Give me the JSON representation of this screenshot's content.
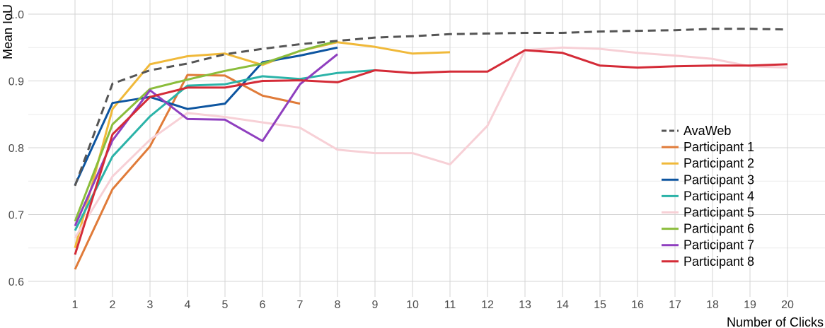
{
  "chart_data": {
    "type": "line",
    "xlabel": "Number of Clicks",
    "ylabel": "Mean IoU",
    "xlim": [
      0.5,
      20.8
    ],
    "ylim": [
      0.58,
      1.015
    ],
    "x_ticks": [
      "1",
      "2",
      "3",
      "4",
      "5",
      "6",
      "7",
      "8",
      "9",
      "10",
      "11",
      "12",
      "13",
      "14",
      "15",
      "16",
      "17",
      "18",
      "19",
      "20"
    ],
    "y_ticks": [
      "0.6",
      "0.7",
      "0.8",
      "0.9",
      "1.0"
    ],
    "grid": true,
    "legend_position": "right",
    "series": [
      {
        "name": "AvaWeb",
        "color": "#555555",
        "dash": true,
        "x": [
          1,
          2,
          3,
          4,
          5,
          6,
          7,
          8,
          9,
          10,
          11,
          12,
          13,
          14,
          15,
          16,
          17,
          18,
          19,
          20
        ],
        "y": [
          0.743,
          0.896,
          0.916,
          0.926,
          0.94,
          0.948,
          0.955,
          0.96,
          0.965,
          0.967,
          0.97,
          0.971,
          0.972,
          0.972,
          0.974,
          0.975,
          0.976,
          0.978,
          0.978,
          0.977
        ]
      },
      {
        "name": "Participant 1",
        "color": "#e07b39",
        "dash": false,
        "x": [
          1,
          2,
          3,
          4,
          5,
          6,
          7
        ],
        "y": [
          0.618,
          0.738,
          0.802,
          0.909,
          0.908,
          0.878,
          0.866
        ]
      },
      {
        "name": "Participant 2",
        "color": "#f0b93a",
        "dash": false,
        "x": [
          1,
          2,
          3,
          4,
          5,
          6,
          7,
          8,
          9,
          10,
          11
        ],
        "y": [
          0.65,
          0.858,
          0.925,
          0.937,
          0.941,
          0.924,
          0.945,
          0.958,
          0.951,
          0.941,
          0.943
        ]
      },
      {
        "name": "Participant 3",
        "color": "#0d55a0",
        "dash": false,
        "x": [
          1,
          2,
          3,
          4,
          5,
          6,
          7,
          8
        ],
        "y": [
          0.744,
          0.867,
          0.876,
          0.858,
          0.866,
          0.928,
          0.938,
          0.95
        ]
      },
      {
        "name": "Participant 4",
        "color": "#2bb3a8",
        "dash": false,
        "x": [
          1,
          2,
          3,
          4,
          5,
          6,
          7,
          8,
          9
        ],
        "y": [
          0.676,
          0.787,
          0.847,
          0.893,
          0.895,
          0.907,
          0.903,
          0.912,
          0.916
        ]
      },
      {
        "name": "Participant 5",
        "color": "#f7d0d6",
        "dash": false,
        "x": [
          1,
          2,
          3,
          4,
          5,
          6,
          7,
          8,
          9,
          10,
          11,
          12,
          13,
          14,
          15,
          16,
          17,
          18,
          19,
          20
        ],
        "y": [
          0.665,
          0.757,
          0.812,
          0.852,
          0.846,
          0.838,
          0.83,
          0.797,
          0.792,
          0.792,
          0.775,
          0.833,
          0.946,
          0.95,
          0.948,
          0.942,
          0.938,
          0.933,
          0.922,
          0.92
        ]
      },
      {
        "name": "Participant 6",
        "color": "#8bbd3c",
        "dash": false,
        "x": [
          1,
          2,
          3,
          4,
          5,
          6,
          7,
          8
        ],
        "y": [
          0.69,
          0.835,
          0.888,
          0.902,
          0.915,
          0.926,
          0.945,
          0.96
        ]
      },
      {
        "name": "Participant 7",
        "color": "#8f3fbf",
        "dash": false,
        "x": [
          1,
          2,
          3,
          4,
          5,
          6,
          7,
          8
        ],
        "y": [
          0.683,
          0.811,
          0.886,
          0.843,
          0.842,
          0.81,
          0.895,
          0.94
        ]
      },
      {
        "name": "Participant 8",
        "color": "#d42b37",
        "dash": false,
        "x": [
          1,
          2,
          3,
          4,
          5,
          6,
          7,
          8,
          9,
          10,
          11,
          12,
          13,
          14,
          15,
          16,
          17,
          18,
          19,
          20
        ],
        "y": [
          0.64,
          0.82,
          0.876,
          0.89,
          0.89,
          0.9,
          0.901,
          0.898,
          0.916,
          0.912,
          0.914,
          0.914,
          0.946,
          0.942,
          0.923,
          0.92,
          0.922,
          0.923,
          0.923,
          0.925
        ]
      }
    ]
  }
}
